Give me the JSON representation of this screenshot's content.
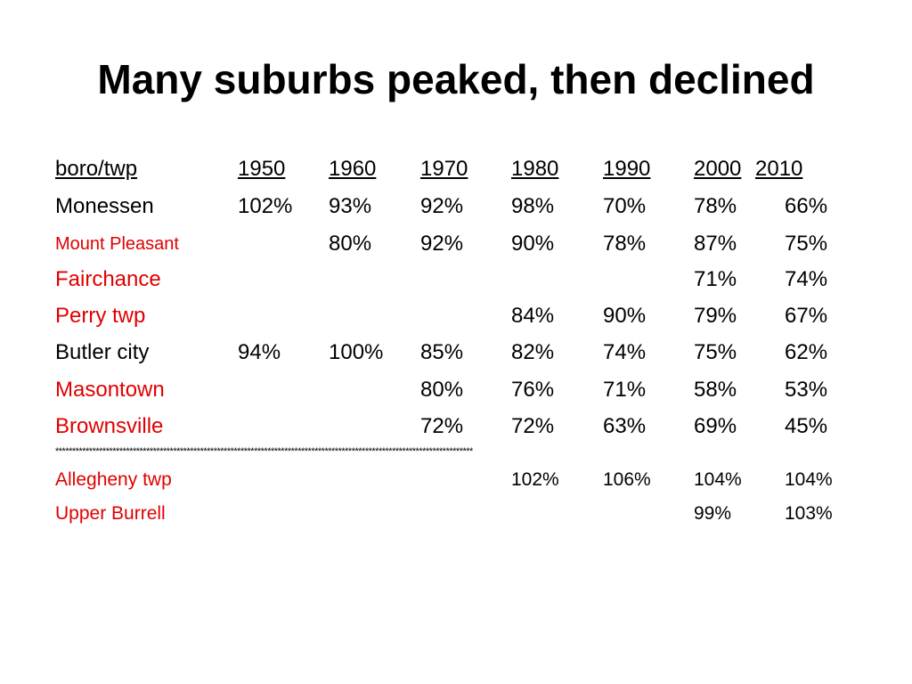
{
  "title": "Many suburbs peaked, then declined",
  "header": {
    "label": "boro/twp",
    "years": [
      "1950",
      "1960",
      "1970",
      "1980",
      "1990",
      "2000",
      "2010"
    ]
  },
  "rows": [
    {
      "name": "Monessen",
      "color": "#000000",
      "values": [
        "102%",
        "93%",
        "92%",
        "98%",
        "70%",
        "78%",
        "66%"
      ]
    },
    {
      "name": "Mount Pleasant",
      "color": "#e00000",
      "values": [
        "",
        "80%",
        "92%",
        "90%",
        "78%",
        "87%",
        "75%"
      ]
    },
    {
      "name": "Fairchance",
      "color": "#e00000",
      "values": [
        "",
        "",
        "",
        "",
        "",
        "71%",
        "74%"
      ]
    },
    {
      "name": "Perry twp",
      "color": "#e00000",
      "values": [
        "",
        "",
        "",
        "84%",
        "90%",
        "79%",
        "67%"
      ]
    },
    {
      "name": "Butler city",
      "color": "#000000",
      "values": [
        "94%",
        "100%",
        "85%",
        "82%",
        "74%",
        "75%",
        "62%"
      ]
    },
    {
      "name": "Masontown",
      "color": "#e00000",
      "values": [
        "",
        "",
        "80%",
        "76%",
        "71%",
        "58%",
        "53%"
      ]
    },
    {
      "name": "Brownsville",
      "color": "#e00000",
      "values": [
        "",
        "",
        "72%",
        "72%",
        "63%",
        "69%",
        "45%"
      ]
    }
  ],
  "separator": "****************************************************************************************************************************",
  "lower_rows": [
    {
      "name": "Allegheny twp",
      "color": "#e00000",
      "values": [
        "",
        "",
        "",
        "102%",
        "106%",
        "104%",
        "104%"
      ]
    },
    {
      "name": "Upper Burrell",
      "color": "#e00000",
      "values": [
        "",
        "",
        "",
        "",
        "",
        "99%",
        "103%"
      ]
    }
  ]
}
